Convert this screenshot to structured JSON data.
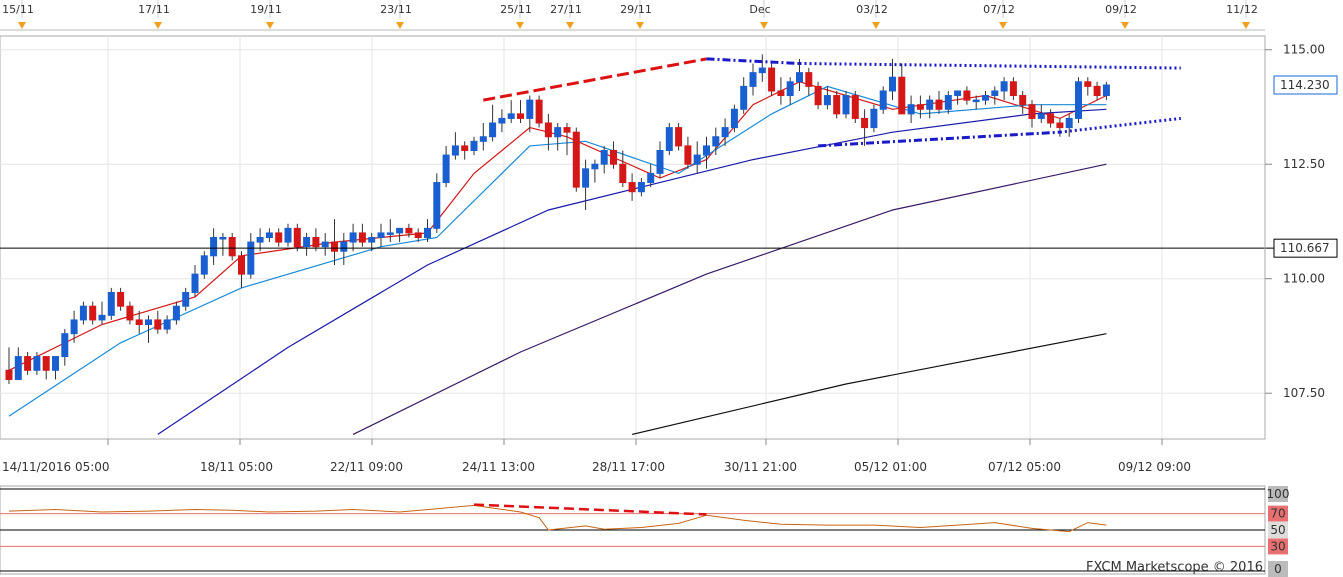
{
  "chart_data": {
    "type": "candlestick",
    "title": "",
    "watermark": "FXCM Marketscope © 2016",
    "top_markers": [
      "15/11",
      "17/11",
      "19/11",
      "23/11",
      "25/11",
      "27/11",
      "29/11",
      "Dec",
      "03/12",
      "07/12",
      "09/12",
      "11/12"
    ],
    "x_ticks": [
      "14/11/2016 05:00",
      "18/11 05:00",
      "22/11 09:00",
      "24/11 13:00",
      "28/11 17:00",
      "30/11 21:00",
      "05/12 01:00",
      "07/12 05:00",
      "09/12 09:00"
    ],
    "y_ticks": [
      "107.50",
      "110.00",
      "112.50",
      "115.00"
    ],
    "ylim": [
      106.5,
      115.3
    ],
    "last_price": "114.230",
    "level_price": "110.667",
    "candles": [
      [
        108.0,
        108.5,
        107.7,
        107.8
      ],
      [
        107.8,
        108.5,
        107.8,
        108.3
      ],
      [
        108.3,
        108.4,
        107.9,
        108.0
      ],
      [
        108.0,
        108.4,
        107.9,
        108.3
      ],
      [
        108.3,
        108.3,
        107.8,
        108.0
      ],
      [
        108.0,
        108.3,
        107.8,
        108.3
      ],
      [
        108.3,
        108.9,
        108.1,
        108.8
      ],
      [
        108.8,
        109.3,
        108.6,
        109.1
      ],
      [
        109.1,
        109.5,
        109.0,
        109.4
      ],
      [
        109.4,
        109.5,
        109.0,
        109.1
      ],
      [
        109.1,
        109.5,
        109.0,
        109.2
      ],
      [
        109.2,
        109.8,
        109.1,
        109.7
      ],
      [
        109.7,
        109.8,
        109.3,
        109.4
      ],
      [
        109.4,
        109.5,
        109.0,
        109.1
      ],
      [
        109.1,
        109.3,
        108.8,
        109.0
      ],
      [
        109.0,
        109.2,
        108.6,
        109.1
      ],
      [
        109.1,
        109.3,
        108.8,
        108.9
      ],
      [
        108.9,
        109.2,
        108.8,
        109.1
      ],
      [
        109.1,
        109.5,
        109.0,
        109.4
      ],
      [
        109.4,
        109.8,
        109.3,
        109.7
      ],
      [
        109.7,
        110.3,
        109.6,
        110.1
      ],
      [
        110.1,
        110.6,
        110.0,
        110.5
      ],
      [
        110.5,
        111.1,
        110.3,
        110.9
      ],
      [
        110.9,
        111.0,
        110.5,
        110.9
      ],
      [
        110.9,
        111.0,
        110.4,
        110.5
      ],
      [
        110.5,
        110.6,
        109.8,
        110.1
      ],
      [
        110.1,
        111.0,
        110.0,
        110.8
      ],
      [
        110.8,
        111.1,
        110.6,
        110.9
      ],
      [
        110.9,
        111.1,
        110.8,
        111.0
      ],
      [
        111.0,
        111.1,
        110.7,
        110.8
      ],
      [
        110.8,
        111.2,
        110.7,
        111.1
      ],
      [
        111.1,
        111.2,
        110.6,
        110.7
      ],
      [
        110.7,
        111.0,
        110.5,
        110.9
      ],
      [
        110.9,
        111.1,
        110.6,
        110.7
      ],
      [
        110.7,
        111.0,
        110.5,
        110.8
      ],
      [
        110.8,
        111.3,
        110.3,
        110.6
      ],
      [
        110.6,
        111.0,
        110.3,
        110.8
      ],
      [
        110.8,
        111.2,
        110.6,
        111.0
      ],
      [
        111.0,
        111.2,
        110.7,
        110.8
      ],
      [
        110.8,
        111.0,
        110.6,
        110.9
      ],
      [
        110.9,
        111.2,
        110.7,
        111.0
      ],
      [
        111.0,
        111.3,
        110.8,
        111.0
      ],
      [
        111.0,
        111.1,
        110.8,
        111.1
      ],
      [
        111.1,
        111.2,
        110.9,
        111.0
      ],
      [
        111.0,
        111.1,
        110.8,
        110.9
      ],
      [
        110.9,
        111.3,
        110.8,
        111.1
      ],
      [
        111.1,
        112.3,
        111.0,
        112.1
      ],
      [
        112.1,
        112.9,
        112.0,
        112.7
      ],
      [
        112.7,
        113.2,
        112.6,
        112.9
      ],
      [
        112.9,
        113.0,
        112.6,
        112.8
      ],
      [
        112.8,
        113.1,
        112.7,
        113.0
      ],
      [
        113.0,
        113.4,
        112.8,
        113.1
      ],
      [
        113.1,
        113.8,
        113.0,
        113.4
      ],
      [
        113.4,
        113.7,
        113.2,
        113.5
      ],
      [
        113.5,
        113.9,
        113.4,
        113.6
      ],
      [
        113.6,
        113.9,
        113.4,
        113.5
      ],
      [
        113.5,
        114.0,
        113.2,
        113.9
      ],
      [
        113.9,
        114.0,
        113.3,
        113.4
      ],
      [
        113.4,
        113.6,
        112.8,
        113.1
      ],
      [
        113.1,
        113.4,
        112.8,
        113.3
      ],
      [
        113.3,
        113.4,
        112.7,
        113.2
      ],
      [
        113.2,
        113.3,
        111.9,
        112.0
      ],
      [
        112.0,
        112.6,
        111.5,
        112.4
      ],
      [
        112.4,
        112.6,
        112.1,
        112.5
      ],
      [
        112.5,
        112.9,
        112.3,
        112.8
      ],
      [
        112.8,
        113.0,
        112.4,
        112.5
      ],
      [
        112.5,
        112.8,
        112.0,
        112.1
      ],
      [
        112.1,
        112.3,
        111.7,
        111.9
      ],
      [
        111.9,
        112.2,
        111.8,
        112.1
      ],
      [
        112.1,
        112.5,
        112.0,
        112.3
      ],
      [
        112.3,
        113.0,
        112.2,
        112.8
      ],
      [
        112.8,
        113.4,
        112.7,
        113.3
      ],
      [
        113.3,
        113.4,
        112.8,
        112.9
      ],
      [
        112.9,
        113.1,
        112.4,
        112.5
      ],
      [
        112.5,
        113.0,
        112.3,
        112.7
      ],
      [
        112.7,
        113.1,
        112.4,
        112.9
      ],
      [
        112.9,
        113.3,
        112.7,
        113.1
      ],
      [
        113.1,
        113.5,
        112.9,
        113.3
      ],
      [
        113.3,
        113.8,
        113.2,
        113.7
      ],
      [
        113.7,
        114.4,
        113.6,
        114.2
      ],
      [
        114.2,
        114.7,
        114.0,
        114.5
      ],
      [
        114.5,
        114.9,
        114.3,
        114.6
      ],
      [
        114.6,
        114.7,
        114.0,
        114.1
      ],
      [
        114.1,
        114.4,
        113.8,
        114.0
      ],
      [
        114.0,
        114.4,
        113.8,
        114.3
      ],
      [
        114.3,
        114.8,
        114.1,
        114.5
      ],
      [
        114.5,
        114.6,
        114.0,
        114.2
      ],
      [
        114.2,
        114.3,
        113.7,
        113.8
      ],
      [
        113.8,
        114.2,
        113.7,
        114.0
      ],
      [
        114.0,
        114.1,
        113.5,
        113.6
      ],
      [
        113.6,
        114.1,
        113.5,
        114.0
      ],
      [
        114.0,
        114.1,
        113.4,
        113.5
      ],
      [
        113.5,
        113.7,
        112.9,
        113.3
      ],
      [
        113.3,
        113.8,
        113.2,
        113.7
      ],
      [
        113.7,
        114.2,
        113.6,
        114.1
      ],
      [
        114.1,
        114.8,
        113.9,
        114.4
      ],
      [
        114.4,
        114.7,
        113.6,
        113.6
      ],
      [
        113.6,
        114.0,
        113.4,
        113.8
      ],
      [
        113.8,
        114.0,
        113.5,
        113.7
      ],
      [
        113.7,
        114.0,
        113.5,
        113.9
      ],
      [
        113.9,
        114.1,
        113.6,
        113.7
      ],
      [
        113.7,
        114.1,
        113.6,
        114.0
      ],
      [
        114.0,
        114.1,
        113.8,
        114.1
      ],
      [
        114.1,
        114.2,
        113.8,
        113.9
      ],
      [
        113.9,
        114.0,
        113.7,
        113.9
      ],
      [
        113.9,
        114.1,
        113.8,
        114.0
      ],
      [
        114.0,
        114.2,
        113.8,
        114.1
      ],
      [
        114.1,
        114.4,
        113.9,
        114.3
      ],
      [
        114.3,
        114.4,
        113.9,
        114.0
      ],
      [
        114.0,
        114.1,
        113.6,
        113.8
      ],
      [
        113.8,
        113.9,
        113.3,
        113.5
      ],
      [
        113.5,
        113.8,
        113.4,
        113.6
      ],
      [
        113.6,
        113.7,
        113.3,
        113.4
      ],
      [
        113.4,
        113.5,
        113.1,
        113.3
      ],
      [
        113.3,
        113.6,
        113.1,
        113.5
      ],
      [
        113.5,
        114.4,
        113.4,
        114.3
      ],
      [
        114.3,
        114.4,
        114.0,
        114.2
      ],
      [
        114.2,
        114.3,
        113.9,
        114.0
      ],
      [
        114.0,
        114.3,
        113.9,
        114.23
      ]
    ],
    "moving_averages": [
      {
        "color": "#d41818",
        "points": [
          [
            0,
            108.0
          ],
          [
            10,
            109.0
          ],
          [
            20,
            109.6
          ],
          [
            25,
            110.5
          ],
          [
            35,
            110.8
          ],
          [
            45,
            111.0
          ],
          [
            50,
            112.3
          ],
          [
            56,
            113.3
          ],
          [
            60,
            113.1
          ],
          [
            70,
            112.2
          ],
          [
            75,
            112.6
          ],
          [
            80,
            113.8
          ],
          [
            85,
            114.3
          ],
          [
            95,
            113.7
          ],
          [
            105,
            114.0
          ],
          [
            113,
            113.5
          ],
          [
            118,
            114.0
          ]
        ]
      },
      {
        "color": "#1a8ad8",
        "points": [
          [
            0,
            107.0
          ],
          [
            12,
            108.6
          ],
          [
            25,
            109.8
          ],
          [
            40,
            110.7
          ],
          [
            46,
            110.9
          ],
          [
            56,
            112.9
          ],
          [
            62,
            113.0
          ],
          [
            72,
            112.3
          ],
          [
            82,
            113.6
          ],
          [
            88,
            114.2
          ],
          [
            98,
            113.6
          ],
          [
            110,
            113.8
          ],
          [
            118,
            113.8
          ]
        ]
      },
      {
        "color": "#1a1aaa",
        "points": [
          [
            16,
            106.6
          ],
          [
            30,
            108.5
          ],
          [
            45,
            110.3
          ],
          [
            58,
            111.5
          ],
          [
            68,
            112.0
          ],
          [
            80,
            112.6
          ],
          [
            95,
            113.2
          ],
          [
            110,
            113.6
          ],
          [
            118,
            113.7
          ]
        ]
      },
      {
        "color": "#3a1a66",
        "points": [
          [
            37,
            106.6
          ],
          [
            55,
            108.4
          ],
          [
            75,
            110.1
          ],
          [
            95,
            111.5
          ],
          [
            118,
            112.5
          ]
        ]
      },
      {
        "color": "#111111",
        "points": [
          [
            67,
            106.6
          ],
          [
            90,
            107.7
          ],
          [
            118,
            108.8
          ]
        ]
      }
    ],
    "trend_lines": [
      {
        "color": "#dd1111",
        "style": "dashed",
        "points": [
          [
            51,
            113.9
          ],
          [
            75,
            114.8
          ]
        ]
      },
      {
        "color": "#1a1ac8",
        "style": "dash-dot",
        "points": [
          [
            75,
            114.8
          ],
          [
            85,
            114.7
          ]
        ]
      },
      {
        "color": "#1a1ac8",
        "style": "dotted",
        "points": [
          [
            85,
            114.7
          ],
          [
            126,
            114.6
          ]
        ]
      },
      {
        "color": "#1a1ac8",
        "style": "dash-dot",
        "points": [
          [
            87,
            112.9
          ],
          [
            113,
            113.2
          ]
        ]
      },
      {
        "color": "#1a1ac8",
        "style": "dotted",
        "points": [
          [
            113,
            113.2
          ],
          [
            126,
            113.5
          ]
        ]
      }
    ],
    "rsi": {
      "ticks": [
        "100",
        "70",
        "50",
        "30",
        "0"
      ],
      "tick_colors": [
        "#bbbbbb",
        "#e87070",
        "#dddddd",
        "#e87070",
        "#bbbbbb"
      ],
      "levels": [
        100,
        70,
        50,
        30,
        0
      ],
      "ylim": [
        0,
        100
      ],
      "points": [
        [
          0,
          73
        ],
        [
          5,
          75
        ],
        [
          10,
          72
        ],
        [
          15,
          73
        ],
        [
          20,
          75
        ],
        [
          24,
          74
        ],
        [
          28,
          72
        ],
        [
          33,
          73
        ],
        [
          37,
          75
        ],
        [
          42,
          72
        ],
        [
          46,
          76
        ],
        [
          50,
          80
        ],
        [
          55,
          72
        ],
        [
          57,
          65
        ],
        [
          58,
          50
        ],
        [
          62,
          55
        ],
        [
          64,
          51
        ],
        [
          68,
          53
        ],
        [
          72,
          58
        ],
        [
          75,
          68
        ],
        [
          79,
          62
        ],
        [
          83,
          57
        ],
        [
          88,
          56
        ],
        [
          93,
          56
        ],
        [
          98,
          53
        ],
        [
          102,
          56
        ],
        [
          106,
          59
        ],
        [
          110,
          52
        ],
        [
          114,
          48
        ],
        [
          116,
          59
        ],
        [
          118,
          56
        ]
      ],
      "trend_line": {
        "color": "#dd1111",
        "points": [
          [
            50,
            81
          ],
          [
            75,
            69
          ]
        ]
      }
    }
  }
}
